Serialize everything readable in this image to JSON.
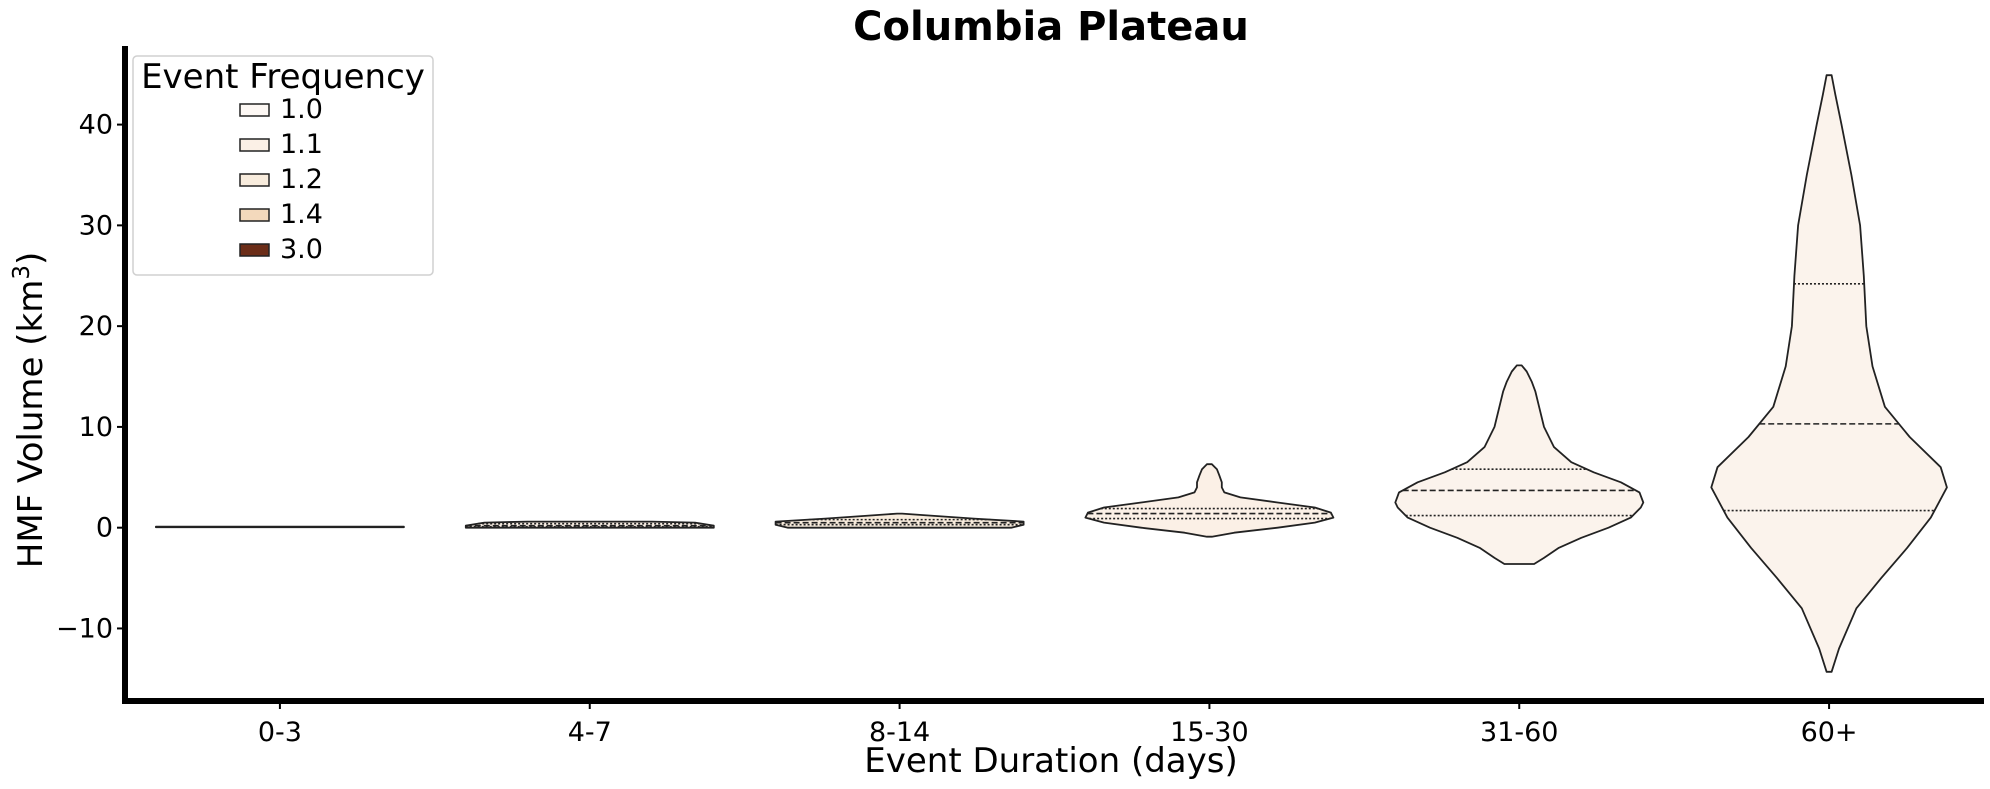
{
  "chart_data": {
    "type": "violin",
    "title": "Columbia Plateau",
    "xlabel": "Event Duration (days)",
    "ylabel": "HMF Volume (km",
    "ylabel_sup": "3",
    "ylabel_close": ")",
    "ylim": [
      -17.2,
      47.8
    ],
    "yticks": [
      -10,
      0,
      10,
      20,
      30,
      40
    ],
    "ytick_labels": [
      "−10",
      "0",
      "10",
      "20",
      "30",
      "40"
    ],
    "categories": [
      "0-3",
      "4-7",
      "8-14",
      "15-30",
      "31-60",
      "60+"
    ],
    "grid": false,
    "legend": {
      "title": "Event Frequency",
      "placement": "top-left",
      "entries": [
        {
          "label": "1.0",
          "color": "#fdf8f4"
        },
        {
          "label": "1.1",
          "color": "#fbf0e6"
        },
        {
          "label": "1.2",
          "color": "#f8ecdd"
        },
        {
          "label": "1.4",
          "color": "#f3d9bc"
        },
        {
          "label": "3.0",
          "color": "#6b2d18"
        }
      ]
    },
    "violins": [
      {
        "category": "0-3",
        "color": "#fdf8f4",
        "profile": [
          [
            0.05,
            1.0
          ],
          [
            0.1,
            1.0
          ]
        ],
        "quartiles": []
      },
      {
        "category": "4-7",
        "color": "#fbf0e6",
        "profile": [
          [
            0.0,
            1.0
          ],
          [
            0.2,
            1.0
          ],
          [
            0.5,
            0.85
          ],
          [
            0.6,
            0.5
          ]
        ],
        "quartiles": [
          0.1,
          0.2,
          0.4
        ]
      },
      {
        "category": "8-14",
        "color": "#f8ecdd",
        "profile": [
          [
            0.0,
            0.9
          ],
          [
            0.3,
            1.0
          ],
          [
            0.6,
            1.0
          ],
          [
            0.9,
            0.6
          ],
          [
            1.2,
            0.25
          ],
          [
            1.4,
            0.02
          ]
        ],
        "quartiles": [
          0.3,
          0.5,
          0.8
        ]
      },
      {
        "category": "15-30",
        "color": "#fbf0e6",
        "profile": [
          [
            -0.9,
            0.02
          ],
          [
            -0.5,
            0.2
          ],
          [
            0.0,
            0.55
          ],
          [
            0.5,
            0.85
          ],
          [
            1.0,
            1.0
          ],
          [
            1.5,
            0.98
          ],
          [
            2.0,
            0.85
          ],
          [
            2.5,
            0.55
          ],
          [
            3.0,
            0.25
          ],
          [
            3.5,
            0.12
          ],
          [
            4.0,
            0.1
          ],
          [
            4.5,
            0.1
          ],
          [
            5.2,
            0.08
          ],
          [
            5.8,
            0.06
          ],
          [
            6.3,
            0.02
          ]
        ],
        "quartiles": [
          0.9,
          1.4,
          1.9
        ]
      },
      {
        "category": "31-60",
        "color": "#fbf3ec",
        "profile": [
          [
            -3.6,
            0.12
          ],
          [
            -3.0,
            0.2
          ],
          [
            -2.0,
            0.32
          ],
          [
            -1.0,
            0.5
          ],
          [
            0.0,
            0.72
          ],
          [
            1.0,
            0.9
          ],
          [
            2.0,
            0.98
          ],
          [
            2.5,
            1.0
          ],
          [
            3.5,
            0.97
          ],
          [
            4.5,
            0.82
          ],
          [
            5.5,
            0.6
          ],
          [
            6.5,
            0.42
          ],
          [
            8.0,
            0.28
          ],
          [
            10.0,
            0.2
          ],
          [
            12.0,
            0.16
          ],
          [
            13.5,
            0.13
          ],
          [
            14.5,
            0.1
          ],
          [
            15.5,
            0.06
          ],
          [
            16.1,
            0.02
          ]
        ],
        "quartiles": [
          1.2,
          3.7,
          5.8
        ]
      },
      {
        "category": "60+",
        "color": "#fbf3ec",
        "profile": [
          [
            -14.3,
            0.02
          ],
          [
            -12.0,
            0.08
          ],
          [
            -8.0,
            0.22
          ],
          [
            -5.0,
            0.42
          ],
          [
            -2.0,
            0.63
          ],
          [
            1.0,
            0.82
          ],
          [
            4.0,
            0.95
          ],
          [
            6.0,
            0.9
          ],
          [
            9.0,
            0.65
          ],
          [
            12.0,
            0.45
          ],
          [
            16.0,
            0.35
          ],
          [
            20.0,
            0.3
          ],
          [
            25.0,
            0.28
          ],
          [
            30.0,
            0.25
          ],
          [
            35.0,
            0.18
          ],
          [
            40.0,
            0.1
          ],
          [
            43.0,
            0.05
          ],
          [
            44.9,
            0.02
          ]
        ],
        "quartiles": [
          1.7,
          10.3,
          24.2
        ]
      }
    ]
  }
}
